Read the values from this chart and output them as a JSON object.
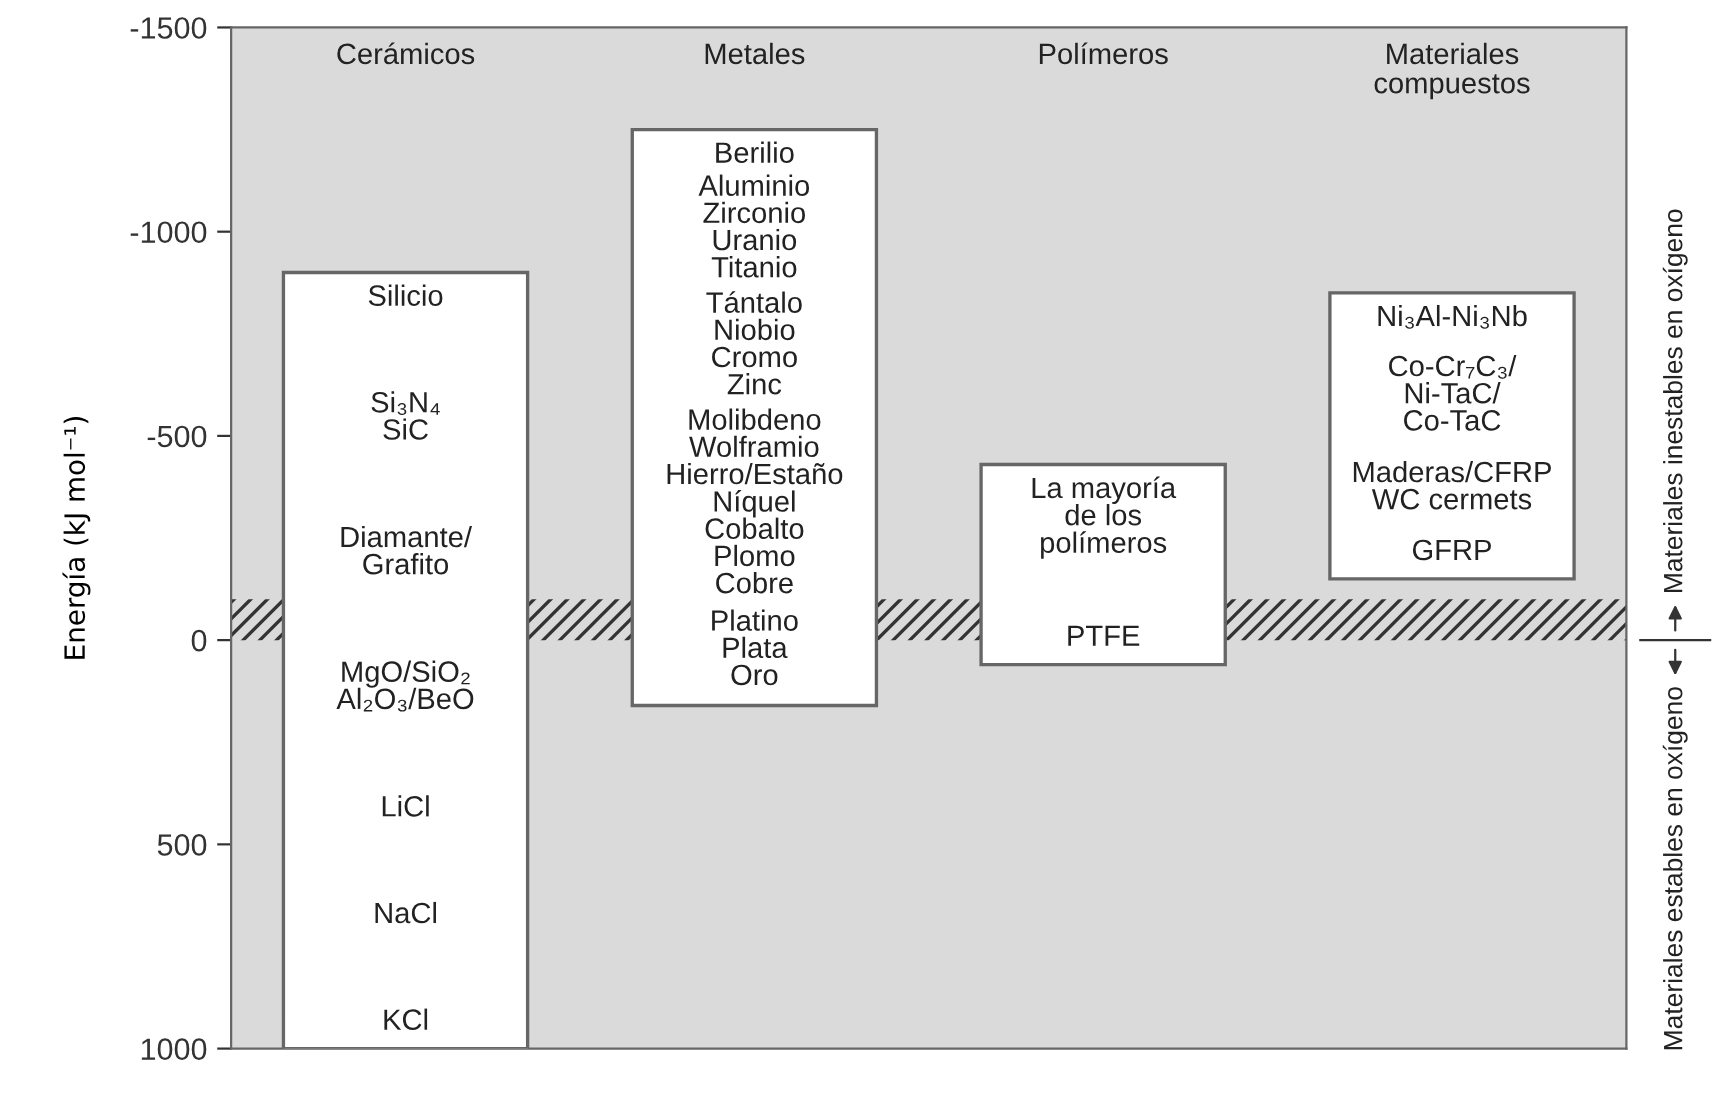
{
  "chart_data": {
    "type": "bar",
    "ylabel": "Energía (kJ mol⁻¹)",
    "categories": [
      "Cerámicos",
      "Metales",
      "Polímeros",
      "Materiales\ncompuestos"
    ],
    "base": [
      -900,
      -1250,
      -430,
      -850
    ],
    "values": [
      1900,
      1410,
      490,
      700
    ],
    "colors": [
      "#ffffff",
      "#ffffff",
      "#ffffff",
      "#ffffff"
    ],
    "ylim": [
      1000,
      -1500
    ],
    "yticks": [
      -1500,
      -1000,
      -500,
      0,
      500,
      1000
    ],
    "grid": false,
    "bands": [
      {
        "axis": "y",
        "from": 0,
        "to": -100,
        "color": "#333333"
      }
    ],
    "annotations": [
      "Silicio\n\nSi₃N₄\nSiC\n\nDiamante/\nGrafito\n\nMgO/SiO₂\nAl₂O₃/BeO\n\nLiCl\n\nNaCl\n\nKCl",
      "Berilio\n\nAluminio\nZirconio\nUranio\nTitanio\n\nTántalo\nNiobio\nCromo\nZinc\n\nMolibdeno\nWolframio\nHierro/Estaño\nNíquel\nCobalto\nPlomo\nCobre\n\nPlatino\nPlata\nOro",
      "La mayoría\nde los\npolímeros\n\nPTFE",
      "Ni₃Al-Ni₃Nb\n\nCo-Cr₇C₃/\nNi-TaC/\nCo-TaC\n\nMaderas/CFRP\nWC cermets\n\nGFRP",
      "Materiales estables en oxígeno",
      "Materiales inestables en oxígeno"
    ]
  }
}
